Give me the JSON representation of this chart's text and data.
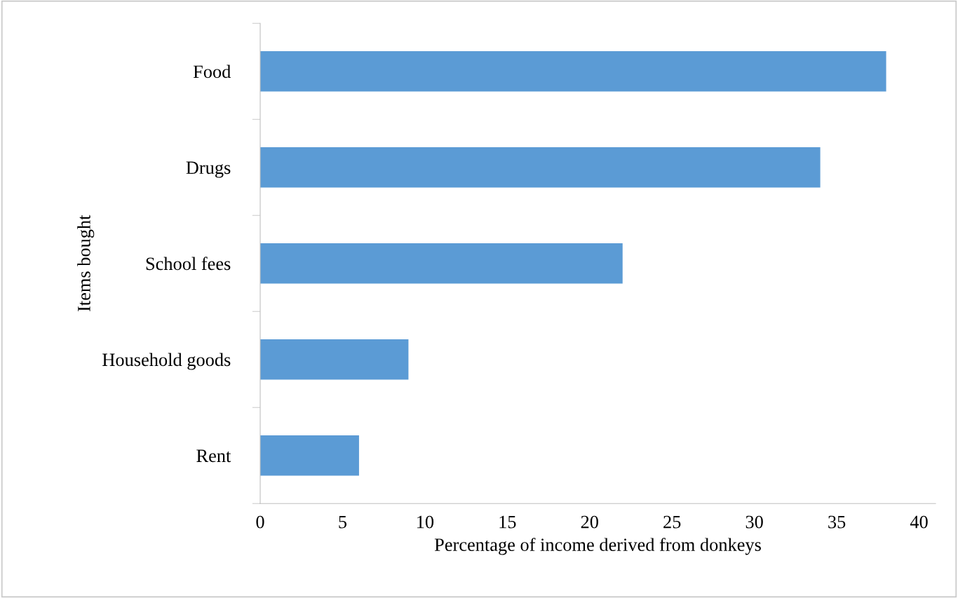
{
  "chart_data": {
    "type": "bar",
    "orientation": "horizontal",
    "categories": [
      "Food",
      "Drugs",
      "School fees",
      "Household goods",
      "Rent"
    ],
    "values": [
      38,
      34,
      22,
      9,
      6
    ],
    "color": "#5b9bd5",
    "xlabel": "Percentage of income derived from donkeys",
    "ylabel": "Items bought",
    "xlim": [
      0,
      41
    ],
    "xticks": [
      0,
      5,
      10,
      15,
      20,
      25,
      30,
      35,
      40
    ],
    "grid": false,
    "legend": false
  }
}
